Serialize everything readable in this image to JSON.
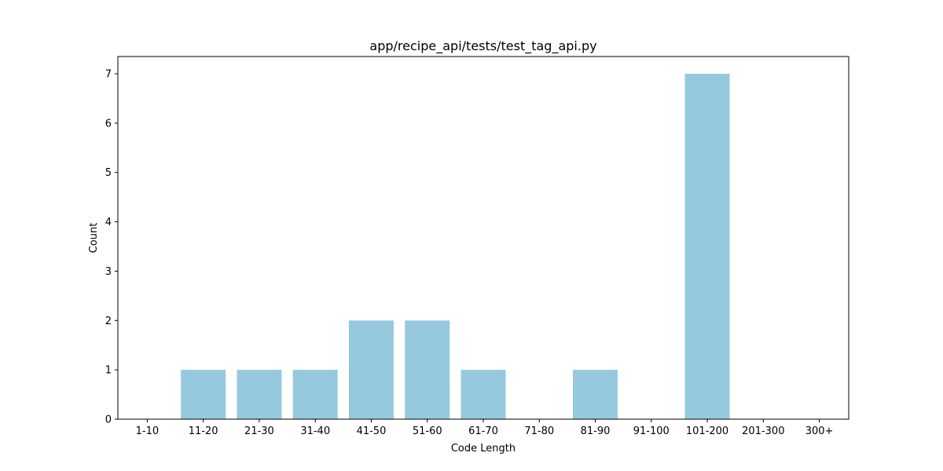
{
  "chart_data": {
    "type": "bar",
    "title": "app/recipe_api/tests/test_tag_api.py",
    "xlabel": "Code Length",
    "ylabel": "Count",
    "categories": [
      "1-10",
      "11-20",
      "21-30",
      "31-40",
      "41-50",
      "51-60",
      "61-70",
      "71-80",
      "81-90",
      "91-100",
      "101-200",
      "201-300",
      "300+"
    ],
    "values": [
      0,
      1,
      1,
      1,
      2,
      2,
      1,
      0,
      1,
      0,
      7,
      0,
      0
    ],
    "ylim": [
      0,
      7.35
    ],
    "yticks": [
      0,
      1,
      2,
      3,
      4,
      5,
      6,
      7
    ],
    "bar_color": "#96c9dd",
    "grid": false,
    "legend": "none"
  }
}
